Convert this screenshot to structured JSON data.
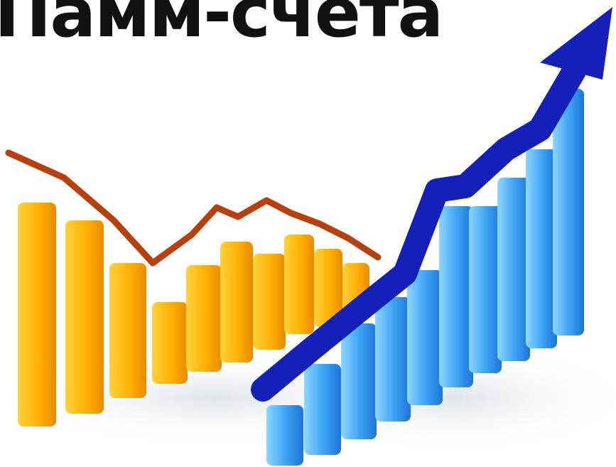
{
  "title": "Памм-счета",
  "colors": {
    "text": "#111111",
    "orange_light": "#FFC21A",
    "orange_dark": "#E38A00",
    "blue_light": "#6EC7FF",
    "blue_dark": "#1E7FE0",
    "down_line": "#B43C10",
    "up_arrow": "#1420B8"
  }
}
